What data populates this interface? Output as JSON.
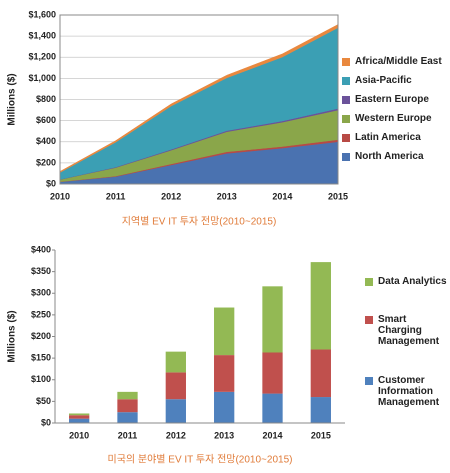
{
  "chart_data": [
    {
      "type": "area",
      "y_label": "Millions ($)",
      "caption": "지역별 EV IT 투자 전망(2010~2015)",
      "categories": [
        "2010",
        "2011",
        "2012",
        "2013",
        "2014",
        "2015"
      ],
      "series": [
        {
          "name": "North America",
          "color": "#4a72b0",
          "values": [
            20,
            70,
            180,
            290,
            340,
            400
          ]
        },
        {
          "name": "Latin America",
          "color": "#b84a45",
          "values": [
            2,
            5,
            10,
            15,
            15,
            20
          ]
        },
        {
          "name": "Western Europe",
          "color": "#8aa64a",
          "values": [
            20,
            80,
            130,
            190,
            230,
            280
          ]
        },
        {
          "name": "Eastern Europe",
          "color": "#6b529a",
          "values": [
            2,
            5,
            8,
            10,
            12,
            15
          ]
        },
        {
          "name": "Asia-Pacific",
          "color": "#3b9fb4",
          "values": [
            65,
            235,
            410,
            500,
            605,
            765
          ]
        },
        {
          "name": "Africa/Middle East",
          "color": "#e9883e",
          "values": [
            10,
            15,
            20,
            25,
            30,
            30
          ]
        }
      ],
      "ylim": [
        0,
        1600
      ],
      "yticks": [
        {
          "value": 0,
          "label": "$0"
        },
        {
          "value": 200,
          "label": "$200"
        },
        {
          "value": 400,
          "label": "$400"
        },
        {
          "value": 600,
          "label": "$600"
        },
        {
          "value": 800,
          "label": "$800"
        },
        {
          "value": 1000,
          "label": "$1,000"
        },
        {
          "value": 1200,
          "label": "$1,200"
        },
        {
          "value": 1400,
          "label": "$1,400"
        },
        {
          "value": 1600,
          "label": "$1,600"
        }
      ],
      "grid": true,
      "legend": "right"
    },
    {
      "type": "bar",
      "y_label": "Millions ($)",
      "caption": "미국의 분야별 EV IT 투자 전망(2010~2015)",
      "categories": [
        "2010",
        "2011",
        "2012",
        "2013",
        "2014",
        "2015"
      ],
      "series": [
        {
          "name": "Customer Information Management",
          "color": "#4f81bd",
          "values": [
            10,
            25,
            55,
            72,
            68,
            60
          ]
        },
        {
          "name": "Smart Charging Management",
          "color": "#c0504d",
          "values": [
            8,
            30,
            62,
            85,
            95,
            110
          ]
        },
        {
          "name": "Data Analytics",
          "color": "#93b954",
          "values": [
            4,
            17,
            48,
            110,
            153,
            202
          ]
        }
      ],
      "ylim": [
        0,
        400
      ],
      "yticks": [
        {
          "value": 0,
          "label": "$0"
        },
        {
          "value": 50,
          "label": "$50"
        },
        {
          "value": 100,
          "label": "$100"
        },
        {
          "value": 150,
          "label": "$150"
        },
        {
          "value": 200,
          "label": "$200"
        },
        {
          "value": 250,
          "label": "$250"
        },
        {
          "value": 300,
          "label": "$300"
        },
        {
          "value": 350,
          "label": "$350"
        },
        {
          "value": 400,
          "label": "$400"
        }
      ],
      "grid": false,
      "legend": "right"
    }
  ]
}
